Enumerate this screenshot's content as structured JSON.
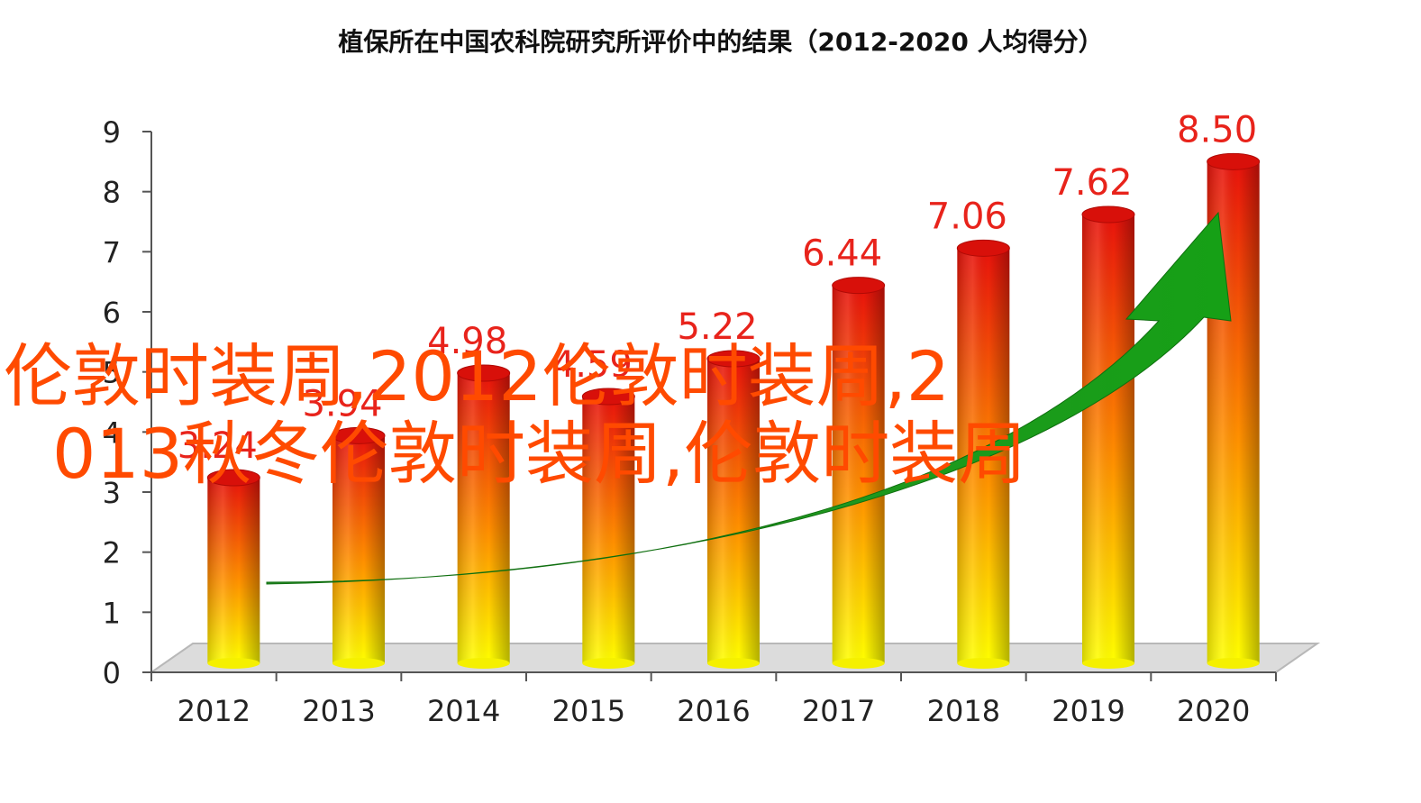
{
  "chart_data": {
    "type": "bar",
    "title": "植保所在中国农科院研究所评价中的结果（2012-2020 人均得分）",
    "categories": [
      "2012",
      "2013",
      "2014",
      "2015",
      "2016",
      "2017",
      "2018",
      "2019",
      "2020"
    ],
    "values": [
      3.24,
      3.94,
      4.98,
      4.59,
      5.22,
      6.44,
      7.06,
      7.62,
      8.5
    ],
    "data_labels": [
      "3.24",
      "3.94",
      "4.98",
      "4.59",
      "5.22",
      "6.44",
      "7.06",
      "7.62",
      "8.50"
    ],
    "y_ticks": [
      "0",
      "1",
      "2",
      "3",
      "4",
      "5",
      "6",
      "7",
      "8",
      "9"
    ],
    "ylim": [
      0,
      9
    ],
    "xlabel": "",
    "ylabel": "",
    "grid": false,
    "legend": "none",
    "style": "3d-cylinder",
    "colors": {
      "bar_top": "#e8120c",
      "bar_mid": "#ff8c00",
      "bar_bottom": "#ffff00",
      "label": "#e8231b",
      "trend_arrow": "#1e9e1e",
      "floor": "#dcdcdc"
    }
  },
  "overlay": {
    "line1": "伦敦时装周,2012伦敦时装周,2",
    "line2": "013秋冬伦敦时装周,伦敦时装周",
    "color": "#ff4a00"
  }
}
